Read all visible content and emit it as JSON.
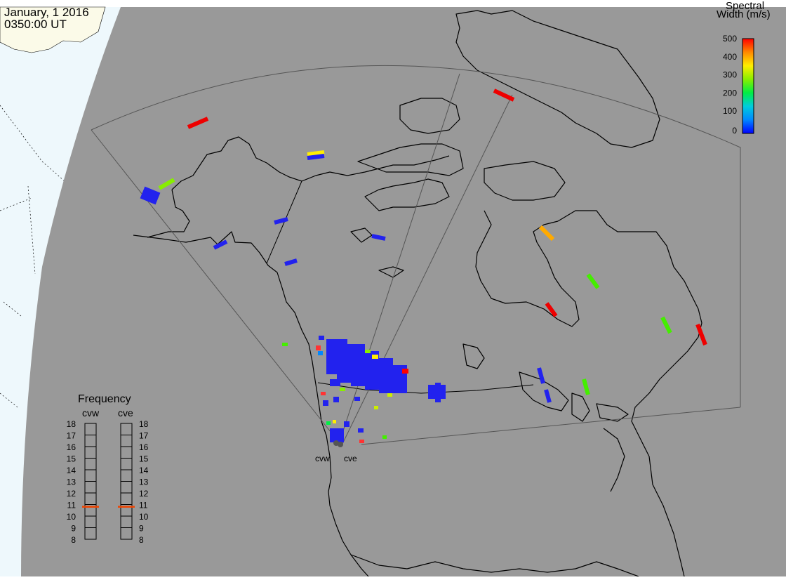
{
  "header": {
    "date": "January, 1 2016",
    "time": "0350:00 UT"
  },
  "colorbar": {
    "title_line1": "Spectral",
    "title_line2": "Width (m/s)",
    "ticks": [
      "500",
      "400",
      "300",
      "200",
      "100",
      "0"
    ],
    "colors": [
      "#ff0000",
      "#ff8800",
      "#ffee00",
      "#88ee00",
      "#00ee44",
      "#00ccdd",
      "#0088ff",
      "#0000ff"
    ]
  },
  "frequency_panel": {
    "title": "Frequency",
    "radars": [
      {
        "name": "cvw",
        "value_mhz": 10.8
      },
      {
        "name": "cve",
        "value_mhz": 10.8
      }
    ],
    "ticks": [
      "18",
      "17",
      "16",
      "15",
      "14",
      "13",
      "12",
      "11",
      "10",
      "9",
      "8"
    ]
  },
  "radar_sites": [
    {
      "name": "cvw"
    },
    {
      "name": "cve"
    }
  ],
  "map": {
    "background": "#999999",
    "daylight_color": "#eef8fc",
    "land_color": "#fbfae8",
    "coastline_color": "#000000",
    "fov_color": "#555555"
  }
}
